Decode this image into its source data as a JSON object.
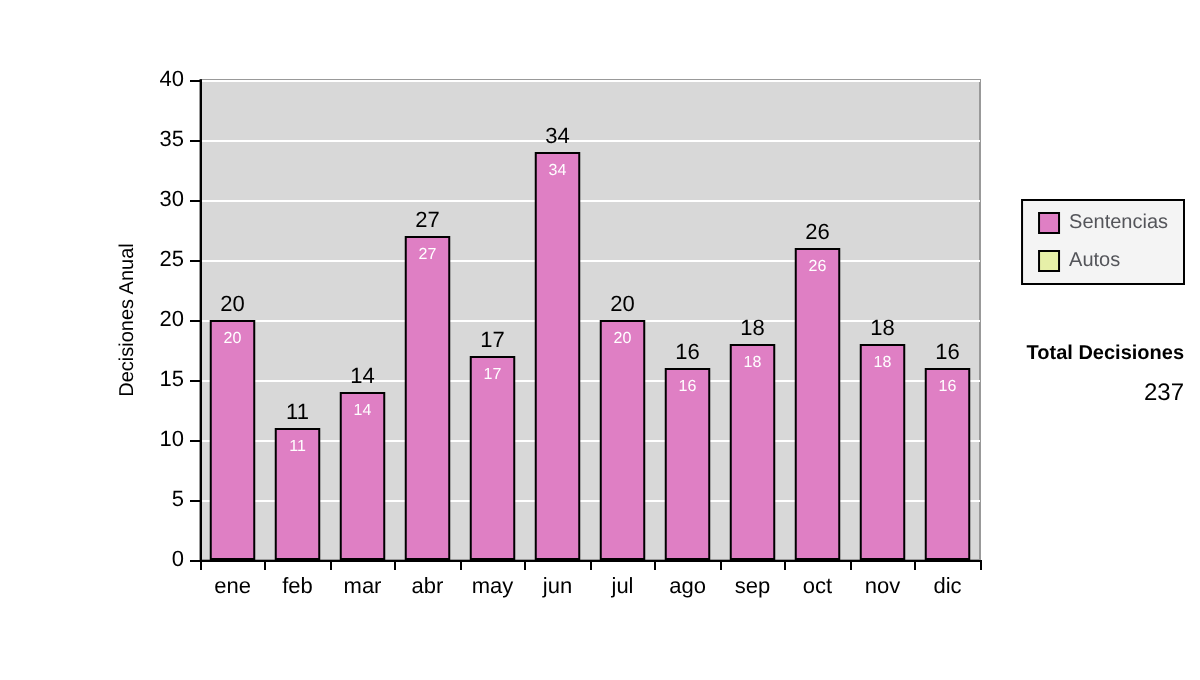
{
  "chart_data": {
    "type": "bar",
    "ylabel": "Decisiones Anual",
    "categories": [
      "ene",
      "feb",
      "mar",
      "abr",
      "may",
      "jun",
      "jul",
      "ago",
      "sep",
      "oct",
      "nov",
      "dic"
    ],
    "series": [
      {
        "name": "Sentencias",
        "color": "#df7fc4",
        "values": [
          20,
          11,
          14,
          27,
          17,
          34,
          20,
          16,
          18,
          26,
          18,
          16
        ],
        "value_labels": [
          "20",
          "11",
          "14",
          "27",
          "17",
          "34",
          "20",
          "16",
          "18",
          "26",
          "18",
          "16"
        ]
      },
      {
        "name": "Autos",
        "color": "#e6f0a8",
        "values": [
          null,
          null,
          null,
          null,
          null,
          null,
          null,
          null,
          null,
          null,
          null,
          null
        ]
      }
    ],
    "stacked": true,
    "totals": [
      "20",
      "11",
      "14",
      "27",
      "17",
      "34",
      "20",
      "16",
      "18",
      "26",
      "18",
      "16"
    ],
    "ylim": [
      0,
      40
    ],
    "yticks": [
      0,
      5,
      10,
      15,
      20,
      25,
      30,
      35,
      40
    ],
    "grid": "y",
    "legend": "right",
    "annotations": [
      "Total Decisiones",
      "237"
    ]
  }
}
